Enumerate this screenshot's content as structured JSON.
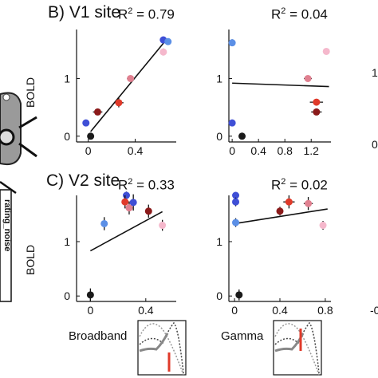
{
  "panels": [
    {
      "id": "B",
      "title": "B) V1 site"
    },
    {
      "id": "C",
      "title": "C) V2 site"
    }
  ],
  "y_axis_label": "BOLD",
  "x_axis_names": [
    "Broadband",
    "Gamma"
  ],
  "dot_colors": [
    "#1a1a1a",
    "#3f4fd6",
    "#5b8fe6",
    "#e03a2a",
    "#8b1a1a",
    "#e08090",
    "#f5b8cc"
  ],
  "line_color": "#111111",
  "left_figure_text": "rating_noise",
  "chart_data": [
    {
      "type": "scatter",
      "title": "B) V1 site",
      "subtitle": "R² = 0.79",
      "r2_value": "0.79",
      "xlabel": "",
      "ylabel": "BOLD",
      "xlim": [
        -0.1,
        0.75
      ],
      "ylim": [
        -0.1,
        1.85
      ],
      "xticks": [
        0,
        0.4
      ],
      "xtick_labels": [
        "0",
        "0.4"
      ],
      "yticks": [
        0,
        1
      ],
      "ytick_labels": [
        "0",
        "1"
      ],
      "points": [
        {
          "x": 0.02,
          "y": 0.0,
          "xerr": 0.0,
          "yerr": 0.05,
          "color": "#1a1a1a"
        },
        {
          "x": -0.02,
          "y": 0.23,
          "xerr": 0.0,
          "yerr": 0.0,
          "color": "#3f4fd6"
        },
        {
          "x": 0.08,
          "y": 0.42,
          "xerr": 0.04,
          "yerr": 0.05,
          "color": "#8b1a1a"
        },
        {
          "x": 0.26,
          "y": 0.58,
          "xerr": 0.04,
          "yerr": 0.08,
          "color": "#e03a2a"
        },
        {
          "x": 0.36,
          "y": 1.0,
          "xerr": 0.03,
          "yerr": 0.03,
          "color": "#e08090"
        },
        {
          "x": 0.64,
          "y": 1.46,
          "xerr": 0.0,
          "yerr": 0.06,
          "color": "#f5b8cc"
        },
        {
          "x": 0.64,
          "y": 1.67,
          "xerr": 0.0,
          "yerr": 0.0,
          "color": "#3f4fd6"
        },
        {
          "x": 0.68,
          "y": 1.64,
          "xerr": 0.0,
          "yerr": 0.0,
          "color": "#5b8fe6"
        }
      ],
      "fit": {
        "x": [
          0.02,
          0.66
        ],
        "y": [
          0.08,
          1.66
        ]
      }
    },
    {
      "type": "scatter",
      "title": "",
      "subtitle": "R² = 0.04",
      "r2_value": "0.04",
      "xlabel": "",
      "ylabel": "",
      "xlim": [
        -0.05,
        1.5
      ],
      "ylim": [
        -0.1,
        1.85
      ],
      "xticks": [
        0,
        0.4,
        0.8,
        1.2
      ],
      "xtick_labels": [
        "0",
        "0.4",
        "0.8",
        "1.2"
      ],
      "yticks": [
        0,
        1
      ],
      "ytick_labels": [
        "0",
        "1"
      ],
      "points": [
        {
          "x": 0.0,
          "y": 1.62,
          "xerr": 0.0,
          "yerr": 0.06,
          "color": "#5b8fe6"
        },
        {
          "x": 0.0,
          "y": 0.23,
          "xerr": 0.0,
          "yerr": 0.0,
          "color": "#3f4fd6"
        },
        {
          "x": 0.15,
          "y": 0.0,
          "xerr": 0.05,
          "yerr": 0.04,
          "color": "#1a1a1a"
        },
        {
          "x": 1.15,
          "y": 1.0,
          "xerr": 0.06,
          "yerr": 0.03,
          "color": "#e08090"
        },
        {
          "x": 1.28,
          "y": 0.59,
          "xerr": 0.1,
          "yerr": 0.04,
          "color": "#e03a2a"
        },
        {
          "x": 1.28,
          "y": 0.42,
          "xerr": 0.08,
          "yerr": 0.05,
          "color": "#8b1a1a"
        },
        {
          "x": 1.43,
          "y": 1.47,
          "xerr": 0.05,
          "yerr": 0.0,
          "color": "#f5b8cc"
        }
      ],
      "fit": {
        "x": [
          0.0,
          1.47
        ],
        "y": [
          0.92,
          0.86
        ]
      }
    },
    {
      "type": "scatter",
      "title": "C) V2 site",
      "subtitle": "R² = 0.33",
      "r2_value": "0.33",
      "xlabel": "Broadband",
      "ylabel": "BOLD",
      "xlim": [
        -0.1,
        0.62
      ],
      "ylim": [
        -0.1,
        1.85
      ],
      "xticks": [
        0,
        0.4
      ],
      "xtick_labels": [
        "0",
        "0.4"
      ],
      "yticks": [
        0,
        1
      ],
      "ytick_labels": [
        "0",
        "1"
      ],
      "points": [
        {
          "x": 0.0,
          "y": 0.02,
          "xerr": 0.0,
          "yerr": 0.12,
          "color": "#1a1a1a"
        },
        {
          "x": 0.1,
          "y": 1.33,
          "xerr": 0.0,
          "yerr": 0.12,
          "color": "#5b8fe6"
        },
        {
          "x": 0.26,
          "y": 1.85,
          "xerr": 0.0,
          "yerr": 0.07,
          "color": "#3f4fd6"
        },
        {
          "x": 0.25,
          "y": 1.73,
          "xerr": 0.0,
          "yerr": 0.12,
          "color": "#e03a2a"
        },
        {
          "x": 0.28,
          "y": 1.62,
          "xerr": 0.0,
          "yerr": 0.12,
          "color": "#e08090"
        },
        {
          "x": 0.31,
          "y": 1.72,
          "xerr": 0.0,
          "yerr": 0.15,
          "color": "#3f4fd6"
        },
        {
          "x": 0.42,
          "y": 1.56,
          "xerr": 0.0,
          "yerr": 0.12,
          "color": "#8b1a1a"
        },
        {
          "x": 0.52,
          "y": 1.3,
          "xerr": 0.0,
          "yerr": 0.1,
          "color": "#f5b8cc"
        }
      ],
      "fit": {
        "x": [
          0.0,
          0.52
        ],
        "y": [
          0.83,
          1.55
        ]
      }
    },
    {
      "type": "scatter",
      "title": "",
      "subtitle": "R² = 0.02",
      "r2_value": "0.02",
      "xlabel": "Gamma",
      "ylabel": "",
      "xlim": [
        -0.05,
        0.85
      ],
      "ylim": [
        -0.1,
        1.85
      ],
      "xticks": [
        0,
        0.4,
        0.8
      ],
      "xtick_labels": [
        "0",
        "0.4",
        "0.8"
      ],
      "yticks": [
        0,
        1
      ],
      "ytick_labels": [
        "0",
        "1"
      ],
      "points": [
        {
          "x": 0.01,
          "y": 1.85,
          "xerr": 0.0,
          "yerr": 0.06,
          "color": "#3f4fd6"
        },
        {
          "x": 0.01,
          "y": 1.73,
          "xerr": 0.0,
          "yerr": 0.08,
          "color": "#3f4fd6"
        },
        {
          "x": 0.01,
          "y": 1.35,
          "xerr": 0.0,
          "yerr": 0.08,
          "color": "#5b8fe6"
        },
        {
          "x": 0.04,
          "y": 0.02,
          "xerr": 0.02,
          "yerr": 0.1,
          "color": "#1a1a1a"
        },
        {
          "x": 0.4,
          "y": 1.56,
          "xerr": 0.03,
          "yerr": 0.08,
          "color": "#8b1a1a"
        },
        {
          "x": 0.48,
          "y": 1.73,
          "xerr": 0.05,
          "yerr": 0.12,
          "color": "#e03a2a"
        },
        {
          "x": 0.65,
          "y": 1.7,
          "xerr": 0.04,
          "yerr": 0.12,
          "color": "#e08090"
        },
        {
          "x": 0.78,
          "y": 1.3,
          "xerr": 0.0,
          "yerr": 0.08,
          "color": "#f5b8cc"
        }
      ],
      "fit": {
        "x": [
          0.0,
          0.82
        ],
        "y": [
          1.33,
          1.6
        ]
      }
    }
  ]
}
